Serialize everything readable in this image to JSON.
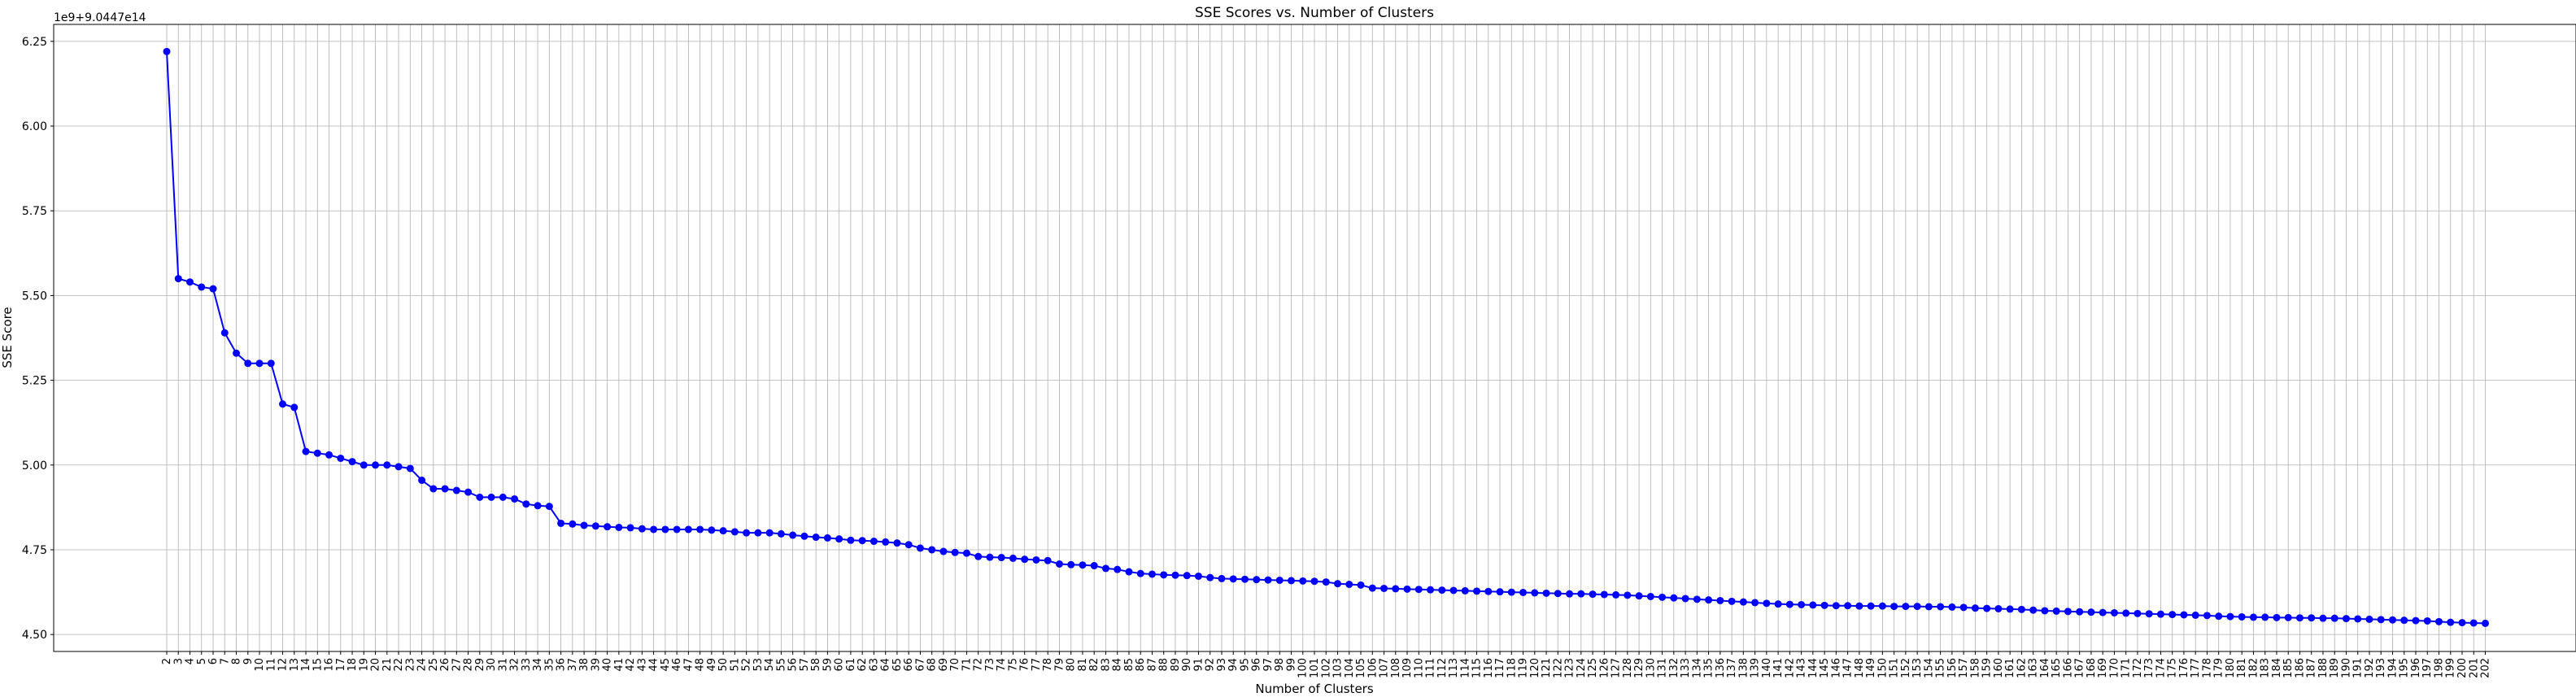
{
  "chart_data": {
    "type": "line",
    "title": "SSE Scores vs. Number of Clusters",
    "xlabel": "Number of Clusters",
    "ylabel": "SSE Score",
    "y_offset_label": "1e9+9.0447e14",
    "xlim": [
      2,
      200
    ],
    "ylim": [
      4.45,
      6.3
    ],
    "yticks": [
      "4.50",
      "4.75",
      "5.00",
      "5.25",
      "5.50",
      "5.75",
      "6.00",
      "6.25"
    ],
    "grid": true,
    "line_color": "#0000ff",
    "marker": "circle",
    "series": [
      {
        "x_start": 2,
        "x_end": 200,
        "values": [
          6.22,
          5.55,
          5.54,
          5.525,
          5.52,
          5.39,
          5.33,
          5.3,
          5.3,
          5.3,
          5.18,
          5.17,
          5.04,
          5.035,
          5.03,
          5.02,
          5.01,
          5.0,
          5.0,
          5.0,
          4.995,
          4.99,
          4.955,
          4.93,
          4.93,
          4.925,
          4.92,
          4.905,
          4.905,
          4.905,
          4.9,
          4.885,
          4.88,
          4.878,
          4.828,
          4.826,
          4.822,
          4.82,
          4.818,
          4.816,
          4.815,
          4.812,
          4.81,
          4.81,
          4.81,
          4.81,
          4.81,
          4.808,
          4.806,
          4.803,
          4.8,
          4.8,
          4.8,
          4.797,
          4.793,
          4.79,
          4.787,
          4.785,
          4.782,
          4.778,
          4.777,
          4.775,
          4.773,
          4.77,
          4.765,
          4.755,
          4.75,
          4.745,
          4.742,
          4.74,
          4.73,
          4.728,
          4.727,
          4.725,
          4.722,
          4.72,
          4.718,
          4.708,
          4.706,
          4.705,
          4.703,
          4.695,
          4.692,
          4.685,
          4.68,
          4.678,
          4.676,
          4.675,
          4.674,
          4.672,
          4.668,
          4.665,
          4.664,
          4.663,
          4.662,
          4.661,
          4.66,
          4.659,
          4.658,
          4.657,
          4.655,
          4.65,
          4.648,
          4.646,
          4.637,
          4.636,
          4.635,
          4.634,
          4.633,
          4.632,
          4.631,
          4.63,
          4.629,
          4.628,
          4.627,
          4.626,
          4.625,
          4.624,
          4.623,
          4.622,
          4.621,
          4.62,
          4.62,
          4.619,
          4.618,
          4.617,
          4.616,
          4.614,
          4.612,
          4.61,
          4.608,
          4.606,
          4.604,
          4.602,
          4.6,
          4.598,
          4.596,
          4.594,
          4.592,
          4.59,
          4.589,
          4.588,
          4.587,
          4.586,
          4.585,
          4.585,
          4.584,
          4.584,
          4.584,
          4.583,
          4.583,
          4.583,
          4.582,
          4.582,
          4.581,
          4.58,
          4.578,
          4.577,
          4.576,
          4.575,
          4.574,
          4.572,
          4.57,
          4.569,
          4.568,
          4.567,
          4.566,
          4.565,
          4.564,
          4.563,
          4.562,
          4.561,
          4.56,
          4.559,
          4.558,
          4.557,
          4.556,
          4.554,
          4.553,
          4.552,
          4.551,
          4.551,
          4.55,
          4.55,
          4.549,
          4.549,
          4.548,
          4.548,
          4.547,
          4.546,
          4.545,
          4.544,
          4.543,
          4.542,
          4.541,
          4.54,
          4.538,
          4.536,
          4.535,
          4.534,
          4.533
        ]
      }
    ]
  }
}
